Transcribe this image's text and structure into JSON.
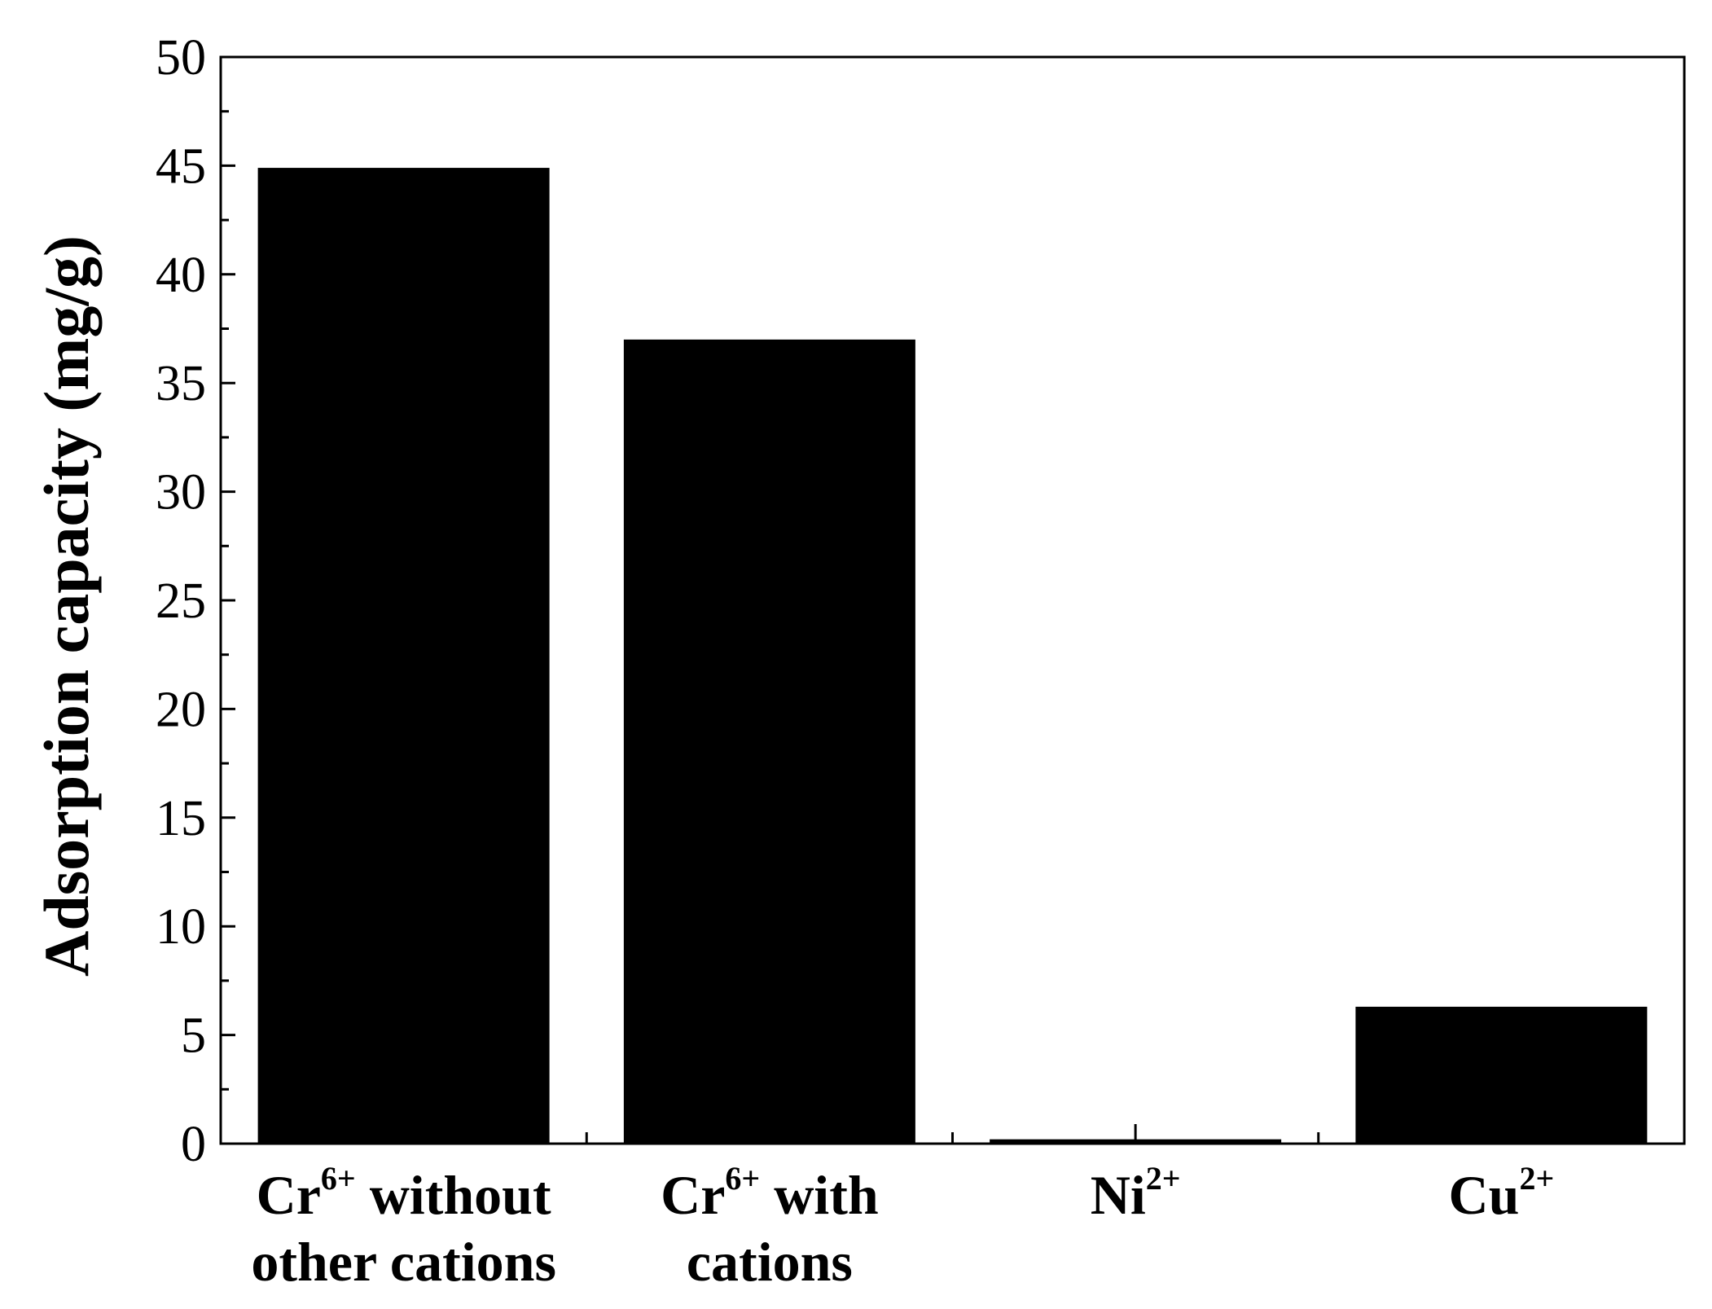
{
  "chart_data": {
    "type": "bar",
    "title": "",
    "xlabel": "",
    "ylabel": "Adsorption capacity (mg/g)",
    "ylim": [
      0,
      50
    ],
    "yticks": [
      "0",
      "5",
      "10",
      "15",
      "20",
      "25",
      "30",
      "35",
      "40",
      "45",
      "50"
    ],
    "grid": false,
    "legend": "none",
    "bar_color": "#000000",
    "categories": [
      {
        "lines": [
          {
            "base": "Cr",
            "sup": "6+",
            "rest": " without"
          },
          {
            "base": "other cations",
            "sup": "",
            "rest": ""
          }
        ]
      },
      {
        "lines": [
          {
            "base": "Cr",
            "sup": "6+",
            "rest": " with"
          },
          {
            "base": "cations",
            "sup": "",
            "rest": ""
          }
        ]
      },
      {
        "lines": [
          {
            "base": "Ni",
            "sup": "2+",
            "rest": ""
          }
        ]
      },
      {
        "lines": [
          {
            "base": "Cu",
            "sup": "2+",
            "rest": ""
          }
        ]
      }
    ],
    "values": [
      44.9,
      37.0,
      0.2,
      6.3
    ]
  }
}
